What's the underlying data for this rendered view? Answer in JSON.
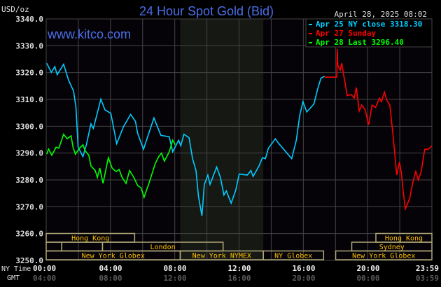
{
  "chart_data": {
    "type": "line",
    "title": "24 Hour Spot Gold (Bid)",
    "watermark": "www.kitco.com",
    "timestamp": "April 28, 2025 08:02",
    "ylabel": "USD/oz",
    "ylim": [
      3250,
      3340
    ],
    "yticks": [
      "3340.0",
      "3330.0",
      "3320.0",
      "3310.0",
      "3300.0",
      "3290.0",
      "3280.0",
      "3270.0",
      "3260.0",
      "3250.0"
    ],
    "xlim_hours": [
      0,
      24
    ],
    "x_row_labels": {
      "ny": "NY Time",
      "gmt": "GMT"
    },
    "xticks_ny": [
      "00:00",
      "04:00",
      "08:00",
      "12:00",
      "16:00",
      "20:00",
      "23:59"
    ],
    "xticks_gmt": [
      "04:00",
      "08:00",
      "12:00",
      "16:00",
      "20:00",
      "00:00",
      "03:59"
    ],
    "grid": true,
    "shaded_session": {
      "start": "08:20",
      "end": "13:30",
      "color": "#161814"
    },
    "legend_position": "top-right",
    "legend": [
      {
        "text": "Apr 25 NY close 3318.30",
        "color": "#00ccff"
      },
      {
        "text": "Apr 27 Sunday",
        "color": "#ff0000"
      },
      {
        "text": "Apr 28 Last 3296.40",
        "color": "#00ff00"
      }
    ],
    "series": [
      {
        "name": "Apr 25",
        "color": "#00ccff",
        "points": [
          [
            "00:02",
            3323.5
          ],
          [
            "00:19",
            3320.1
          ],
          [
            "00:32",
            3322.2
          ],
          [
            "00:41",
            3319.2
          ],
          [
            "01:05",
            3323.1
          ],
          [
            "01:24",
            3317.0
          ],
          [
            "01:42",
            3313.1
          ],
          [
            "01:51",
            3307.1
          ],
          [
            "01:59",
            3292.2
          ],
          [
            "02:17",
            3288.7
          ],
          [
            "02:30",
            3293.1
          ],
          [
            "02:47",
            3300.9
          ],
          [
            "02:56",
            3299.2
          ],
          [
            "03:24",
            3310.1
          ],
          [
            "03:39",
            3306.1
          ],
          [
            "04:01",
            3304.8
          ],
          [
            "04:23",
            3293.5
          ],
          [
            "04:49",
            3300.0
          ],
          [
            "05:15",
            3304.4
          ],
          [
            "05:33",
            3301.8
          ],
          [
            "05:41",
            3297.4
          ],
          [
            "06:03",
            3291.4
          ],
          [
            "06:42",
            3303.1
          ],
          [
            "07:08",
            3296.6
          ],
          [
            "07:39",
            3296.1
          ],
          [
            "07:52",
            3290.5
          ],
          [
            "08:14",
            3294.8
          ],
          [
            "08:22",
            3292.7
          ],
          [
            "08:34",
            3297.0
          ],
          [
            "08:53",
            3295.7
          ],
          [
            "09:06",
            3287.9
          ],
          [
            "09:19",
            3283.5
          ],
          [
            "09:28",
            3273.9
          ],
          [
            "09:41",
            3266.6
          ],
          [
            "09:50",
            3278.3
          ],
          [
            "10:03",
            3281.8
          ],
          [
            "10:11",
            3278.3
          ],
          [
            "10:36",
            3284.8
          ],
          [
            "10:50",
            3280.9
          ],
          [
            "11:03",
            3274.4
          ],
          [
            "11:12",
            3275.9
          ],
          [
            "11:30",
            3271.3
          ],
          [
            "11:47",
            3276.1
          ],
          [
            "12:00",
            3282.2
          ],
          [
            "12:30",
            3281.8
          ],
          [
            "12:44",
            3283.5
          ],
          [
            "12:52",
            3281.3
          ],
          [
            "13:14",
            3285.2
          ],
          [
            "13:27",
            3288.3
          ],
          [
            "13:38",
            3287.9
          ],
          [
            "13:49",
            3291.8
          ],
          [
            "14:15",
            3295.3
          ],
          [
            "14:28",
            3293.5
          ],
          [
            "14:54",
            3290.5
          ],
          [
            "15:16",
            3287.9
          ],
          [
            "15:33",
            3294.8
          ],
          [
            "15:46",
            3304.0
          ],
          [
            "15:58",
            3309.2
          ],
          [
            "16:12",
            3305.3
          ],
          [
            "16:39",
            3308.3
          ],
          [
            "16:52",
            3313.6
          ],
          [
            "17:05",
            3317.9
          ],
          [
            "17:18",
            3318.6
          ]
        ]
      },
      {
        "name": "Apr 27",
        "color": "#ff0000",
        "points": [
          [
            "17:18",
            3318.3
          ],
          [
            "18:04",
            3318.3
          ],
          [
            "18:06",
            3328.8
          ],
          [
            "18:08",
            3322.7
          ],
          [
            "18:17",
            3320.9
          ],
          [
            "18:23",
            3323.5
          ],
          [
            "18:29",
            3319.6
          ],
          [
            "18:36",
            3315.7
          ],
          [
            "18:43",
            3311.4
          ],
          [
            "18:58",
            3311.8
          ],
          [
            "19:09",
            3310.5
          ],
          [
            "19:17",
            3314.4
          ],
          [
            "19:24",
            3308.7
          ],
          [
            "19:28",
            3305.7
          ],
          [
            "19:37",
            3307.9
          ],
          [
            "19:50",
            3306.1
          ],
          [
            "20:03",
            3300.5
          ],
          [
            "20:16",
            3307.9
          ],
          [
            "20:29",
            3307.0
          ],
          [
            "20:43",
            3310.5
          ],
          [
            "20:51",
            3309.2
          ],
          [
            "21:02",
            3312.7
          ],
          [
            "21:11",
            3309.6
          ],
          [
            "21:22",
            3307.9
          ],
          [
            "21:35",
            3295.7
          ],
          [
            "21:43",
            3287.0
          ],
          [
            "21:48",
            3281.8
          ],
          [
            "21:58",
            3286.6
          ],
          [
            "22:05",
            3282.6
          ],
          [
            "22:12",
            3275.7
          ],
          [
            "22:20",
            3269.2
          ],
          [
            "22:36",
            3273.1
          ],
          [
            "22:49",
            3279.6
          ],
          [
            "22:59",
            3283.1
          ],
          [
            "23:08",
            3280.0
          ],
          [
            "23:19",
            3283.1
          ],
          [
            "23:32",
            3291.4
          ],
          [
            "23:45",
            3291.4
          ],
          [
            "23:59",
            3292.7
          ]
        ]
      },
      {
        "name": "Apr 28",
        "color": "#00ff00",
        "points": [
          [
            "00:02",
            3289.6
          ],
          [
            "00:09",
            3291.5
          ],
          [
            "00:21",
            3289.2
          ],
          [
            "00:37",
            3292.2
          ],
          [
            "00:47",
            3291.8
          ],
          [
            "01:05",
            3297.0
          ],
          [
            "01:18",
            3295.3
          ],
          [
            "01:33",
            3296.4
          ],
          [
            "01:40",
            3292.2
          ],
          [
            "01:49",
            3289.6
          ],
          [
            "02:04",
            3291.8
          ],
          [
            "02:17",
            3293.1
          ],
          [
            "02:25",
            3290.9
          ],
          [
            "02:39",
            3289.2
          ],
          [
            "02:47",
            3285.2
          ],
          [
            "03:03",
            3283.5
          ],
          [
            "03:11",
            3280.9
          ],
          [
            "03:20",
            3284.4
          ],
          [
            "03:32",
            3278.7
          ],
          [
            "03:52",
            3288.3
          ],
          [
            "04:06",
            3284.4
          ],
          [
            "04:21",
            3283.1
          ],
          [
            "04:32",
            3283.9
          ],
          [
            "04:43",
            3280.9
          ],
          [
            "04:58",
            3278.7
          ],
          [
            "05:11",
            3283.5
          ],
          [
            "05:27",
            3280.9
          ],
          [
            "05:41",
            3277.9
          ],
          [
            "05:54",
            3277.0
          ],
          [
            "06:05",
            3273.5
          ],
          [
            "06:25",
            3279.2
          ],
          [
            "06:47",
            3286.1
          ],
          [
            "07:00",
            3288.7
          ],
          [
            "07:10",
            3290.0
          ],
          [
            "07:21",
            3287.0
          ],
          [
            "07:39",
            3290.5
          ],
          [
            "07:52",
            3294.8
          ],
          [
            "08:01",
            3293.1
          ]
        ]
      }
    ],
    "sessions": [
      {
        "label": "Hong Kong",
        "row": 0,
        "start": "00:00",
        "end": "05:30"
      },
      {
        "label": "Hong Kong",
        "row": 0,
        "start": "20:30",
        "end": "23:59"
      },
      {
        "label": "",
        "row": 1,
        "start": "00:00",
        "end": "00:58"
      },
      {
        "label": "",
        "row": 1,
        "start": "00:58",
        "end": "03:30"
      },
      {
        "label": "London",
        "row": 1,
        "start": "03:30",
        "end": "11:00"
      },
      {
        "label": "Sydney",
        "row": 1,
        "start": "19:00",
        "end": "23:59"
      },
      {
        "label": "New York Globex",
        "row": 2,
        "start": "00:00",
        "end": "08:20"
      },
      {
        "label": "New York NYMEX",
        "row": 2,
        "start": "08:20",
        "end": "13:30"
      },
      {
        "label": "NY Globex",
        "row": 2,
        "start": "13:30",
        "end": "17:15"
      },
      {
        "label": "New York Globex",
        "row": 2,
        "start": "18:00",
        "end": "23:59"
      }
    ],
    "colors": {
      "background": "#000000",
      "plot_bg": "#050308",
      "grid": "#454545",
      "title": "#4a6ee8",
      "session_border": "#b0a878",
      "session_text": "#ffc000",
      "gmt_text": "#5a5a5a"
    }
  }
}
